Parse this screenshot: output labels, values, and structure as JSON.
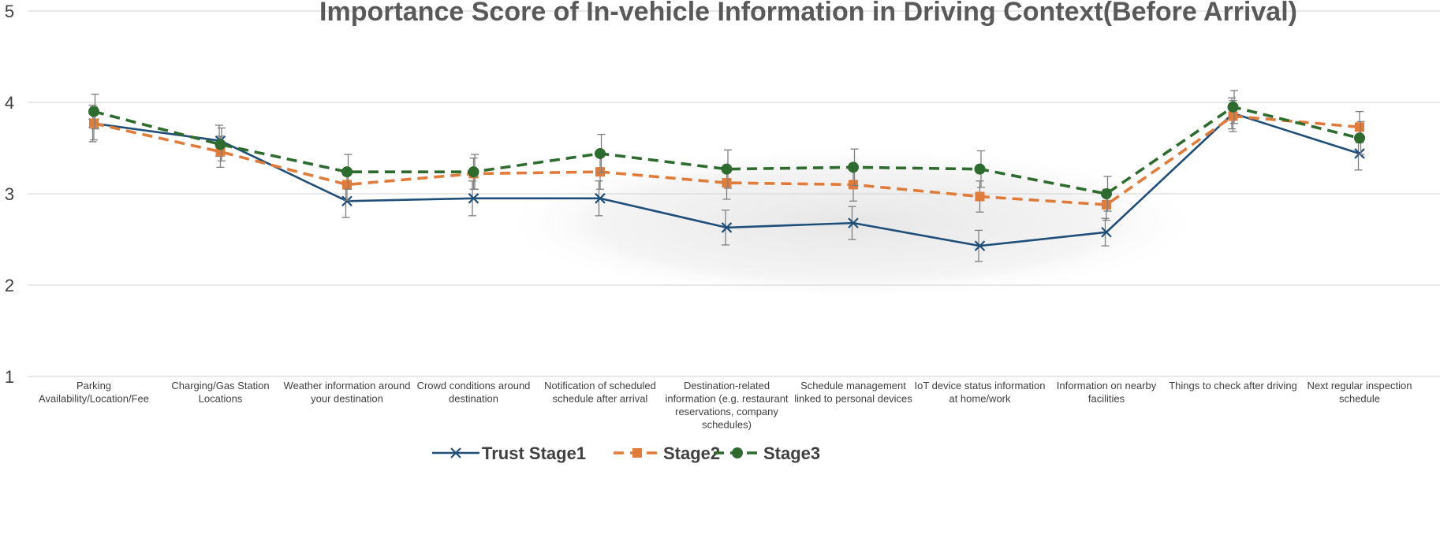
{
  "chart_data": {
    "type": "line",
    "title": "Importance Score of In-vehicle Information in Driving Context(Before Arrival)",
    "xlabel": "",
    "ylabel": "",
    "ylim": [
      1,
      5
    ],
    "yticks": [
      "1",
      "2",
      "3",
      "4",
      "5"
    ],
    "grid": true,
    "legend_position": "bottom",
    "categories": [
      [
        "Parking",
        "Availability/Location/Fee"
      ],
      [
        "Charging/Gas Station",
        "Locations"
      ],
      [
        "Weather information around",
        "your destination"
      ],
      [
        "Crowd conditions around",
        "destination"
      ],
      [
        "Notification of scheduled",
        "schedule after arrival"
      ],
      [
        "Destination-related",
        "information (e.g. restaurant",
        "reservations, company",
        "schedules)"
      ],
      [
        "Schedule management",
        "linked to personal devices"
      ],
      [
        "IoT device status information",
        "at home/work"
      ],
      [
        "Information on nearby",
        "facilities"
      ],
      [
        "Things to check after driving"
      ],
      [
        "Next regular inspection",
        "schedule"
      ]
    ],
    "series": [
      {
        "name": "Trust Stage1",
        "color": "#1f4e79",
        "marker": "x",
        "dash": "solid",
        "values": [
          3.77,
          3.58,
          2.92,
          2.95,
          2.95,
          2.63,
          2.68,
          2.43,
          2.58,
          3.88,
          3.44
        ],
        "errors": [
          0.2,
          0.17,
          0.18,
          0.19,
          0.19,
          0.19,
          0.18,
          0.17,
          0.15,
          0.17,
          0.18
        ]
      },
      {
        "name": "Stage2",
        "color": "#e07b39",
        "marker": "square",
        "dash": "dashed",
        "values": [
          3.77,
          3.46,
          3.1,
          3.22,
          3.24,
          3.12,
          3.1,
          2.97,
          2.88,
          3.85,
          3.73
        ],
        "errors": [
          0.18,
          0.17,
          0.17,
          0.17,
          0.19,
          0.18,
          0.18,
          0.17,
          0.17,
          0.17,
          0.17
        ]
      },
      {
        "name": "Stage3",
        "color": "#2e6b2e",
        "marker": "circle",
        "dash": "dashed",
        "values": [
          3.9,
          3.54,
          3.24,
          3.24,
          3.44,
          3.27,
          3.29,
          3.27,
          3.0,
          3.95,
          3.61
        ],
        "errors": [
          0.19,
          0.18,
          0.19,
          0.19,
          0.21,
          0.21,
          0.2,
          0.2,
          0.19,
          0.18,
          0.18
        ]
      }
    ]
  }
}
